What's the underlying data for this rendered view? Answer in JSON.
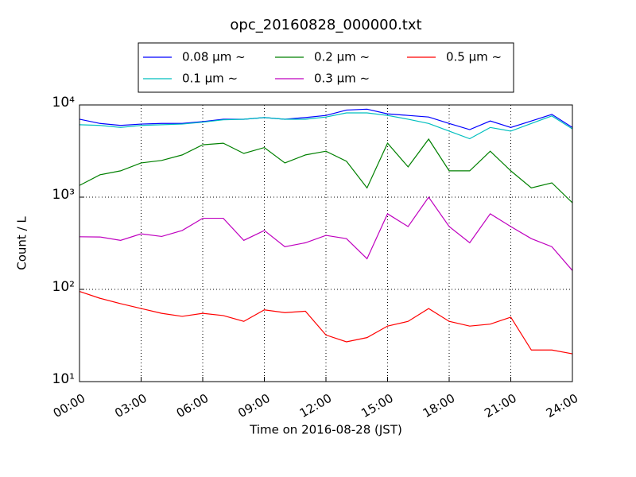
{
  "chart_data": {
    "type": "line",
    "title": "opc_20160828_000000.txt",
    "xlabel": "Time on 2016-08-28 (JST)",
    "ylabel": "Count / L",
    "yscale": "log",
    "grid": true,
    "legend": "top",
    "xlim": [
      0,
      24
    ],
    "xticks": [
      {
        "value": 0,
        "label": "00:00"
      },
      {
        "value": 3,
        "label": "03:00"
      },
      {
        "value": 6,
        "label": "06:00"
      },
      {
        "value": 9,
        "label": "09:00"
      },
      {
        "value": 12,
        "label": "12:00"
      },
      {
        "value": 15,
        "label": "15:00"
      },
      {
        "value": 18,
        "label": "18:00"
      },
      {
        "value": 21,
        "label": "21:00"
      },
      {
        "value": 24,
        "label": "24:00"
      }
    ],
    "ylim": [
      10,
      10000
    ],
    "yticks": [
      {
        "value": 10,
        "label": "10¹"
      },
      {
        "value": 100,
        "label": "10²"
      },
      {
        "value": 1000,
        "label": "10³"
      },
      {
        "value": 10000,
        "label": "10⁴"
      }
    ],
    "x": [
      0,
      1,
      2,
      3,
      4,
      5,
      6,
      7,
      8,
      9,
      10,
      11,
      12,
      13,
      14,
      15,
      16,
      17,
      18,
      19,
      20,
      21,
      22,
      23,
      24
    ],
    "series": [
      {
        "name": "0.08 μm ~",
        "color": "#0000ff",
        "values": [
          7000,
          6300,
          6000,
          6200,
          6300,
          6300,
          6600,
          7000,
          7000,
          7300,
          7000,
          7300,
          7700,
          8800,
          9000,
          8000,
          7700,
          7400,
          6300,
          5400,
          6700,
          5700,
          6700,
          7900,
          5700
        ]
      },
      {
        "name": "0.1 μm ~",
        "color": "#00bfbf",
        "values": [
          6100,
          6000,
          5700,
          6000,
          6100,
          6200,
          6500,
          6900,
          7000,
          7300,
          7000,
          7000,
          7400,
          8200,
          8200,
          7700,
          7000,
          6300,
          5200,
          4300,
          5700,
          5200,
          6300,
          7600,
          5500
        ]
      },
      {
        "name": "0.2 μm ~",
        "color": "#008000",
        "values": [
          1340,
          1750,
          1930,
          2350,
          2500,
          2870,
          3700,
          3850,
          2980,
          3450,
          2350,
          2870,
          3150,
          2450,
          1260,
          3850,
          2130,
          4260,
          1930,
          1930,
          3150,
          1930,
          1260,
          1430,
          870
        ]
      },
      {
        "name": "0.3 μm ~",
        "color": "#bf00bf",
        "values": [
          372,
          370,
          340,
          400,
          375,
          435,
          590,
          590,
          340,
          435,
          290,
          320,
          385,
          355,
          215,
          660,
          480,
          1000,
          480,
          320,
          660,
          480,
          355,
          290,
          160
        ]
      },
      {
        "name": "0.5 μm ~",
        "color": "#ff0000",
        "values": [
          95,
          80,
          70,
          62,
          55,
          51,
          55,
          52,
          45,
          60,
          56,
          58,
          32,
          27,
          30,
          40,
          45,
          62,
          45,
          40,
          42,
          50,
          22,
          22,
          20
        ]
      }
    ]
  }
}
